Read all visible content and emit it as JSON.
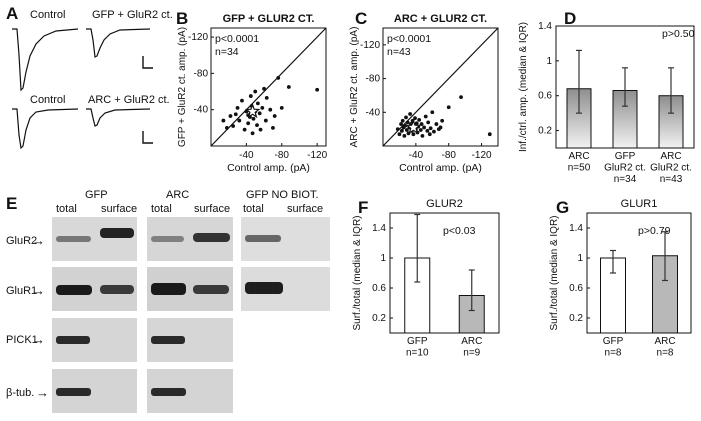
{
  "panels": {
    "A": {
      "letter": "A",
      "traces": [
        {
          "label": "Control"
        },
        {
          "label": "GFP + GluR2 ct."
        },
        {
          "label": "Control"
        },
        {
          "label": "ARC + GluR2 ct."
        }
      ]
    },
    "E": {
      "letter": "E",
      "groups": [
        "GFP",
        "ARC",
        "GFP NO BIOT."
      ],
      "lanes": [
        "total",
        "surface",
        "total",
        "surface",
        "total",
        "surface"
      ],
      "rows": [
        {
          "label": "GluR2",
          "arrow": "→"
        },
        {
          "label": "GluR1",
          "arrow": "→"
        },
        {
          "label": "PICK1",
          "arrow": "→"
        },
        {
          "label": "β-tub.",
          "arrow": "→"
        }
      ]
    }
  },
  "chart_data": [
    {
      "id": "B",
      "letter": "B",
      "type": "scatter",
      "title": "GFP + GLUR2 CT.",
      "xlabel": "Control amp. (pA)",
      "ylabel": "GFP + GluR2 ct. amp. (pA)",
      "xlim": [
        0,
        -130
      ],
      "ylim": [
        0,
        -130
      ],
      "xticks": [
        "-40",
        "-80",
        "-120"
      ],
      "yticks": [
        "-120",
        "-80",
        "-40"
      ],
      "stats": [
        "p<0.0001",
        "n=34"
      ],
      "unity_line": true,
      "median_marker": {
        "x": -47,
        "y": -38
      },
      "points": [
        {
          "x": -14,
          "y": -28
        },
        {
          "x": -18,
          "y": -20
        },
        {
          "x": -22,
          "y": -33
        },
        {
          "x": -25,
          "y": -22
        },
        {
          "x": -28,
          "y": -35
        },
        {
          "x": -30,
          "y": -42
        },
        {
          "x": -32,
          "y": -28
        },
        {
          "x": -35,
          "y": -50
        },
        {
          "x": -38,
          "y": -18
        },
        {
          "x": -40,
          "y": -38
        },
        {
          "x": -42,
          "y": -34
        },
        {
          "x": -42,
          "y": -25
        },
        {
          "x": -44,
          "y": -32
        },
        {
          "x": -45,
          "y": -55
        },
        {
          "x": -46,
          "y": -44
        },
        {
          "x": -47,
          "y": -14
        },
        {
          "x": -48,
          "y": -30
        },
        {
          "x": -50,
          "y": -38
        },
        {
          "x": -50,
          "y": -60
        },
        {
          "x": -52,
          "y": -23
        },
        {
          "x": -53,
          "y": -47
        },
        {
          "x": -55,
          "y": -36
        },
        {
          "x": -56,
          "y": -18
        },
        {
          "x": -58,
          "y": -42
        },
        {
          "x": -60,
          "y": -63
        },
        {
          "x": -62,
          "y": -28
        },
        {
          "x": -63,
          "y": -53
        },
        {
          "x": -67,
          "y": -40
        },
        {
          "x": -70,
          "y": -20
        },
        {
          "x": -72,
          "y": -33
        },
        {
          "x": -76,
          "y": -75
        },
        {
          "x": -80,
          "y": -42
        },
        {
          "x": -88,
          "y": -65
        },
        {
          "x": -120,
          "y": -62
        }
      ]
    },
    {
      "id": "C",
      "letter": "C",
      "type": "scatter",
      "title": "ARC + GLUR2 CT.",
      "xlabel": "Control amp. (pA)",
      "ylabel": "ARC + GluR2 ct. amp. (pA)",
      "xlim": [
        0,
        -140
      ],
      "ylim": [
        0,
        -140
      ],
      "xticks": [
        "-40",
        "-80",
        "-120"
      ],
      "yticks": [
        "-120",
        "-80",
        "-40"
      ],
      "stats": [
        "p<0.0001",
        "n=43"
      ],
      "unity_line": true,
      "median_marker": {
        "x": -37,
        "y": -22
      },
      "points": [
        {
          "x": -18,
          "y": -20
        },
        {
          "x": -20,
          "y": -14
        },
        {
          "x": -22,
          "y": -26
        },
        {
          "x": -23,
          "y": -18
        },
        {
          "x": -24,
          "y": -30
        },
        {
          "x": -25,
          "y": -22
        },
        {
          "x": -26,
          "y": -12
        },
        {
          "x": -27,
          "y": -24
        },
        {
          "x": -28,
          "y": -34
        },
        {
          "x": -29,
          "y": -19
        },
        {
          "x": -30,
          "y": -28
        },
        {
          "x": -31,
          "y": -15
        },
        {
          "x": -32,
          "y": -22
        },
        {
          "x": -33,
          "y": -38
        },
        {
          "x": -34,
          "y": -26
        },
        {
          "x": -35,
          "y": -18
        },
        {
          "x": -36,
          "y": -30
        },
        {
          "x": -37,
          "y": -14
        },
        {
          "x": -38,
          "y": -24
        },
        {
          "x": -39,
          "y": -33
        },
        {
          "x": -40,
          "y": -20
        },
        {
          "x": -41,
          "y": -27
        },
        {
          "x": -42,
          "y": -16
        },
        {
          "x": -43,
          "y": -23
        },
        {
          "x": -44,
          "y": -31
        },
        {
          "x": -46,
          "y": -19
        },
        {
          "x": -47,
          "y": -26
        },
        {
          "x": -48,
          "y": -12
        },
        {
          "x": -50,
          "y": -22
        },
        {
          "x": -52,
          "y": -35
        },
        {
          "x": -54,
          "y": -18
        },
        {
          "x": -55,
          "y": -28
        },
        {
          "x": -57,
          "y": -14
        },
        {
          "x": -58,
          "y": -21
        },
        {
          "x": -60,
          "y": -40
        },
        {
          "x": -62,
          "y": -17
        },
        {
          "x": -65,
          "y": -26
        },
        {
          "x": -68,
          "y": -20
        },
        {
          "x": -70,
          "y": -22
        },
        {
          "x": -72,
          "y": -30
        },
        {
          "x": -80,
          "y": -46
        },
        {
          "x": -95,
          "y": -58
        },
        {
          "x": -130,
          "y": -14
        }
      ]
    },
    {
      "id": "D",
      "letter": "D",
      "type": "bar",
      "ylabel": "Inf./ctrl. amp. (median & IQR)",
      "ylim": [
        0,
        1.4
      ],
      "yticks": [
        "0.2",
        "0.6",
        "1",
        "1.4"
      ],
      "annotation": "p>0.50",
      "fill": "gradient-gray",
      "bars": [
        {
          "label": [
            "ARC",
            "n=50"
          ],
          "value": 0.68,
          "err_low": 0.4,
          "err_high": 1.12
        },
        {
          "label": [
            "GFP",
            "GluR2 ct.",
            "n=34"
          ],
          "value": 0.66,
          "err_low": 0.48,
          "err_high": 0.92
        },
        {
          "label": [
            "ARC",
            "GluR2 ct.",
            "n=43"
          ],
          "value": 0.6,
          "err_low": 0.4,
          "err_high": 0.92
        }
      ]
    },
    {
      "id": "F",
      "letter": "F",
      "type": "bar",
      "title": "GLUR2",
      "ylabel": "Surf./total (median & IQR)",
      "ylim": [
        0,
        1.6
      ],
      "yticks": [
        "0.2",
        "0.6",
        "1",
        "1.4"
      ],
      "annotation": "p<0.03",
      "bars": [
        {
          "label": [
            "GFP",
            "n=10"
          ],
          "value": 1.0,
          "err_low": 0.68,
          "err_high": 1.58,
          "color": "#ffffff"
        },
        {
          "label": [
            "ARC",
            "n=9"
          ],
          "value": 0.5,
          "err_low": 0.3,
          "err_high": 0.84,
          "color": "#b8b8b8"
        }
      ]
    },
    {
      "id": "G",
      "letter": "G",
      "type": "bar",
      "title": "GLUR1",
      "ylabel": "Surf./total (median & IQR)",
      "ylim": [
        0,
        1.6
      ],
      "yticks": [
        "0.2",
        "0.6",
        "1",
        "1.4"
      ],
      "annotation": "p>0.79",
      "bars": [
        {
          "label": [
            "GFP",
            "n=8"
          ],
          "value": 1.0,
          "err_low": 0.8,
          "err_high": 1.1,
          "color": "#ffffff"
        },
        {
          "label": [
            "ARC",
            "n=8"
          ],
          "value": 1.03,
          "err_low": 0.7,
          "err_high": 1.35,
          "color": "#b8b8b8"
        }
      ]
    }
  ]
}
